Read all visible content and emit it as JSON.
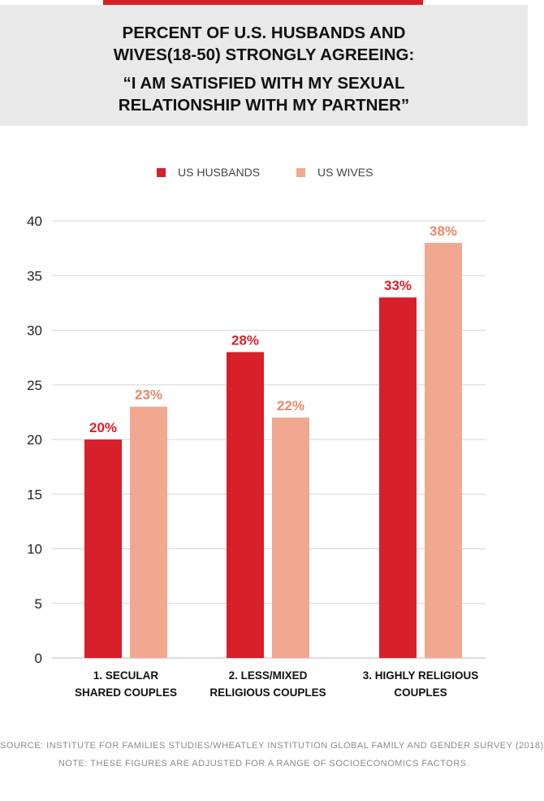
{
  "header": {
    "title_lines": [
      "PERCENT OF U.S. HUSBANDS AND",
      "WIVES(18-50) STRONGLY AGREEING:"
    ],
    "subtitle_lines": [
      "“I AM SATISFIED WITH MY SEXUAL",
      "RELATIONSHIP WITH MY PARTNER”"
    ]
  },
  "colors": {
    "accent": "#d8202a",
    "husbands": "#d8202a",
    "wives": "#f0a890",
    "wives_label": "#e88868",
    "header_bg": "#e9e9e9"
  },
  "legend": {
    "husbands": "US HUSBANDS",
    "wives": "US WIVES"
  },
  "chart_data": {
    "type": "bar",
    "categories": [
      [
        "1. SECULAR",
        "SHARED COUPLES"
      ],
      [
        "2. LESS/MIXED",
        "RELIGIOUS COUPLES"
      ],
      [
        "3. HIGHLY RELIGIOUS",
        "COUPLES"
      ]
    ],
    "series": [
      {
        "name": "US HUSBANDS",
        "values": [
          20,
          28,
          33
        ],
        "labels": [
          "20%",
          "28%",
          "33%"
        ]
      },
      {
        "name": "US WIVES",
        "values": [
          23,
          22,
          38
        ],
        "labels": [
          "23%",
          "22%",
          "38%"
        ]
      }
    ],
    "ylim": [
      0,
      40
    ],
    "yticks": [
      0,
      5,
      10,
      15,
      20,
      25,
      30,
      35,
      40
    ],
    "grid": true,
    "legend_position": "top"
  },
  "footer": {
    "source": "SOURCE: INSTITUTE FOR FAMILIES STUDIES/WHEATLEY INSTITUTION GLOBAL FAMILY AND GENDER SURVEY (2018)",
    "note": "NOTE: THESE FIGURES ARE ADJUSTED FOR A RANGE OF SOCIOECONOMICS FACTORS."
  }
}
